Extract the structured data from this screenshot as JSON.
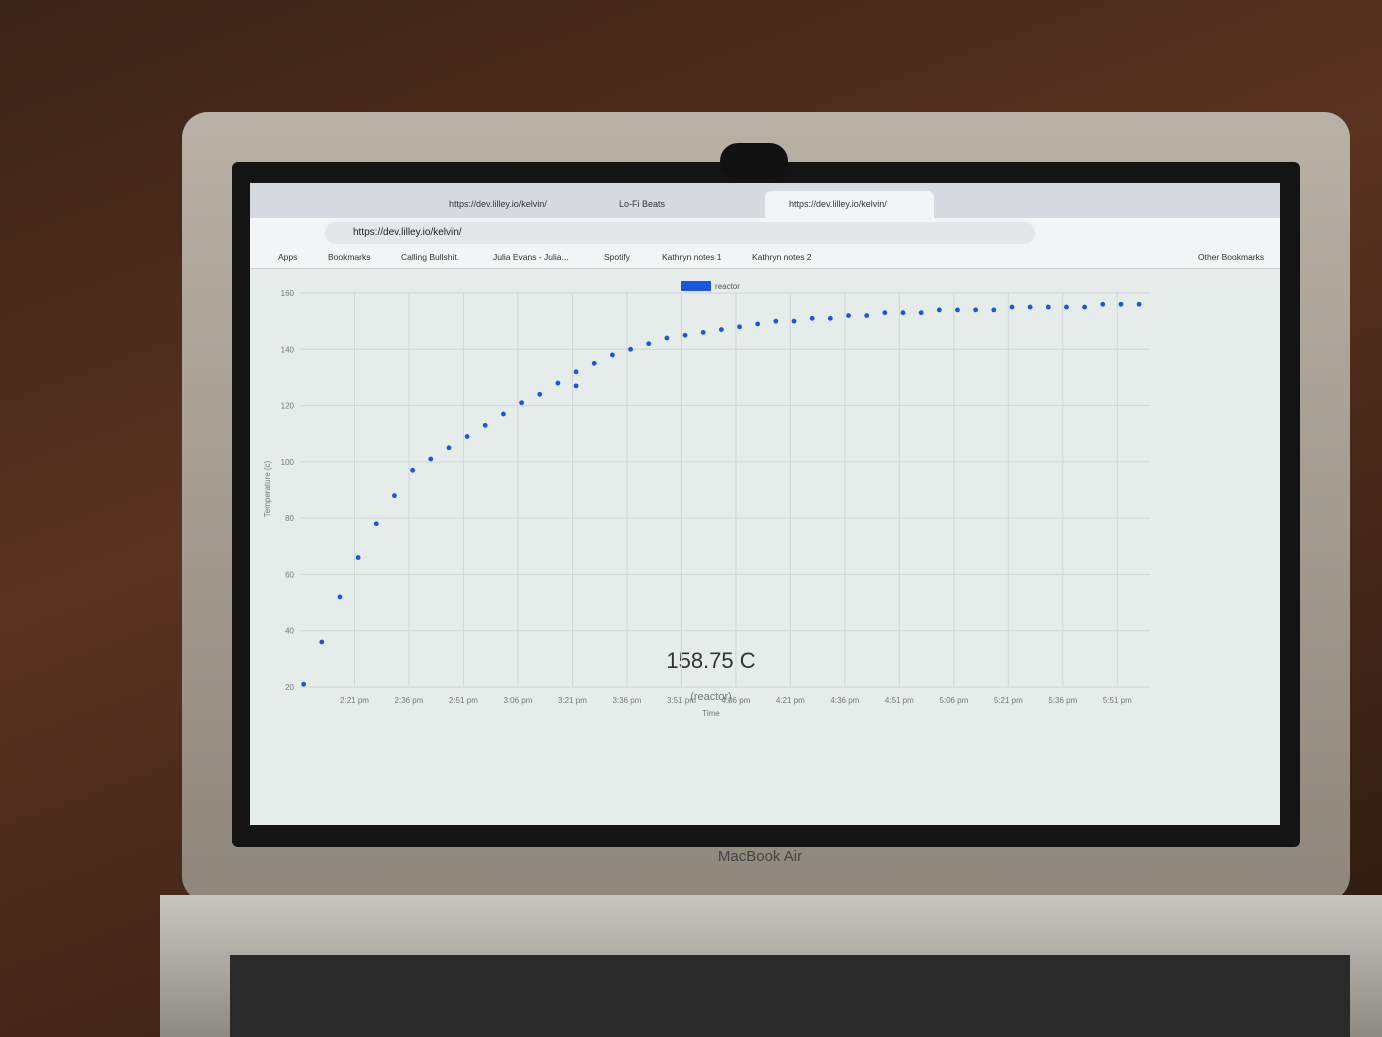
{
  "browser": {
    "tabs": [
      "https://dev.lilley.io/kelvin/",
      "Lo-Fi Beats",
      "https://dev.lilley.io/kelvin/"
    ],
    "url": "https://dev.lilley.io/kelvin/",
    "bookmarks": [
      "Apps",
      "Bookmarks",
      "Calling Bullshit.",
      "Julia Evans - Julia...",
      "Spotify",
      "Kathryn notes 1",
      "Kathryn notes 2"
    ],
    "other_bookmarks": "Other Bookmarks"
  },
  "chart_data": {
    "type": "scatter",
    "y_label": "Temperature (c)",
    "x_label": "Time",
    "series": [
      {
        "name": "reactor",
        "color": "#1a56e0",
        "x": [
          "2:07 pm",
          "2:12 pm",
          "2:17 pm",
          "2:22 pm",
          "2:27 pm",
          "2:32 pm",
          "2:37 pm",
          "2:42 pm",
          "2:47 pm",
          "2:52 pm",
          "2:57 pm",
          "3:02 pm",
          "3:07 pm",
          "3:12 pm",
          "3:17 pm",
          "3:22 pm",
          "3:22 pm",
          "3:27 pm",
          "3:32 pm",
          "3:37 pm",
          "3:42 pm",
          "3:47 pm",
          "3:52 pm",
          "3:57 pm",
          "4:02 pm",
          "4:07 pm",
          "4:12 pm",
          "4:17 pm",
          "4:22 pm",
          "4:27 pm",
          "4:32 pm",
          "4:37 pm",
          "4:42 pm",
          "4:47 pm",
          "4:52 pm",
          "4:57 pm",
          "5:02 pm",
          "5:07 pm",
          "5:12 pm",
          "5:17 pm",
          "5:22 pm",
          "5:27 pm",
          "5:32 pm",
          "5:37 pm",
          "5:42 pm",
          "5:47 pm",
          "5:52 pm",
          "5:57 pm"
        ],
        "values": [
          21,
          36,
          52,
          66,
          78,
          88,
          97,
          101,
          105,
          109,
          113,
          117,
          121,
          124,
          128,
          132,
          127,
          135,
          138,
          140,
          142,
          144,
          145,
          146,
          147,
          148,
          149,
          150,
          150,
          151,
          151,
          152,
          152,
          153,
          153,
          153,
          154,
          154,
          154,
          154,
          155,
          155,
          155,
          155,
          155,
          156,
          156,
          156
        ]
      }
    ],
    "xlim": [
      "2:06 pm",
      "6:00 pm"
    ],
    "xticks": [
      "2:21 pm",
      "2:36 pm",
      "2:51 pm",
      "3:06 pm",
      "3:21 pm",
      "3:36 pm",
      "3:51 pm",
      "4:06 pm",
      "4:21 pm",
      "4:36 pm",
      "4:51 pm",
      "5:06 pm",
      "5:21 pm",
      "5:36 pm",
      "5:51 pm"
    ],
    "ylim": [
      20,
      160
    ],
    "yticks": [
      20,
      40,
      60,
      80,
      100,
      120,
      140,
      160
    ],
    "grid": true
  },
  "readout": {
    "value": "158.75 C",
    "sensor": "(reactor)"
  },
  "laptop": {
    "model": "MacBook Air"
  }
}
